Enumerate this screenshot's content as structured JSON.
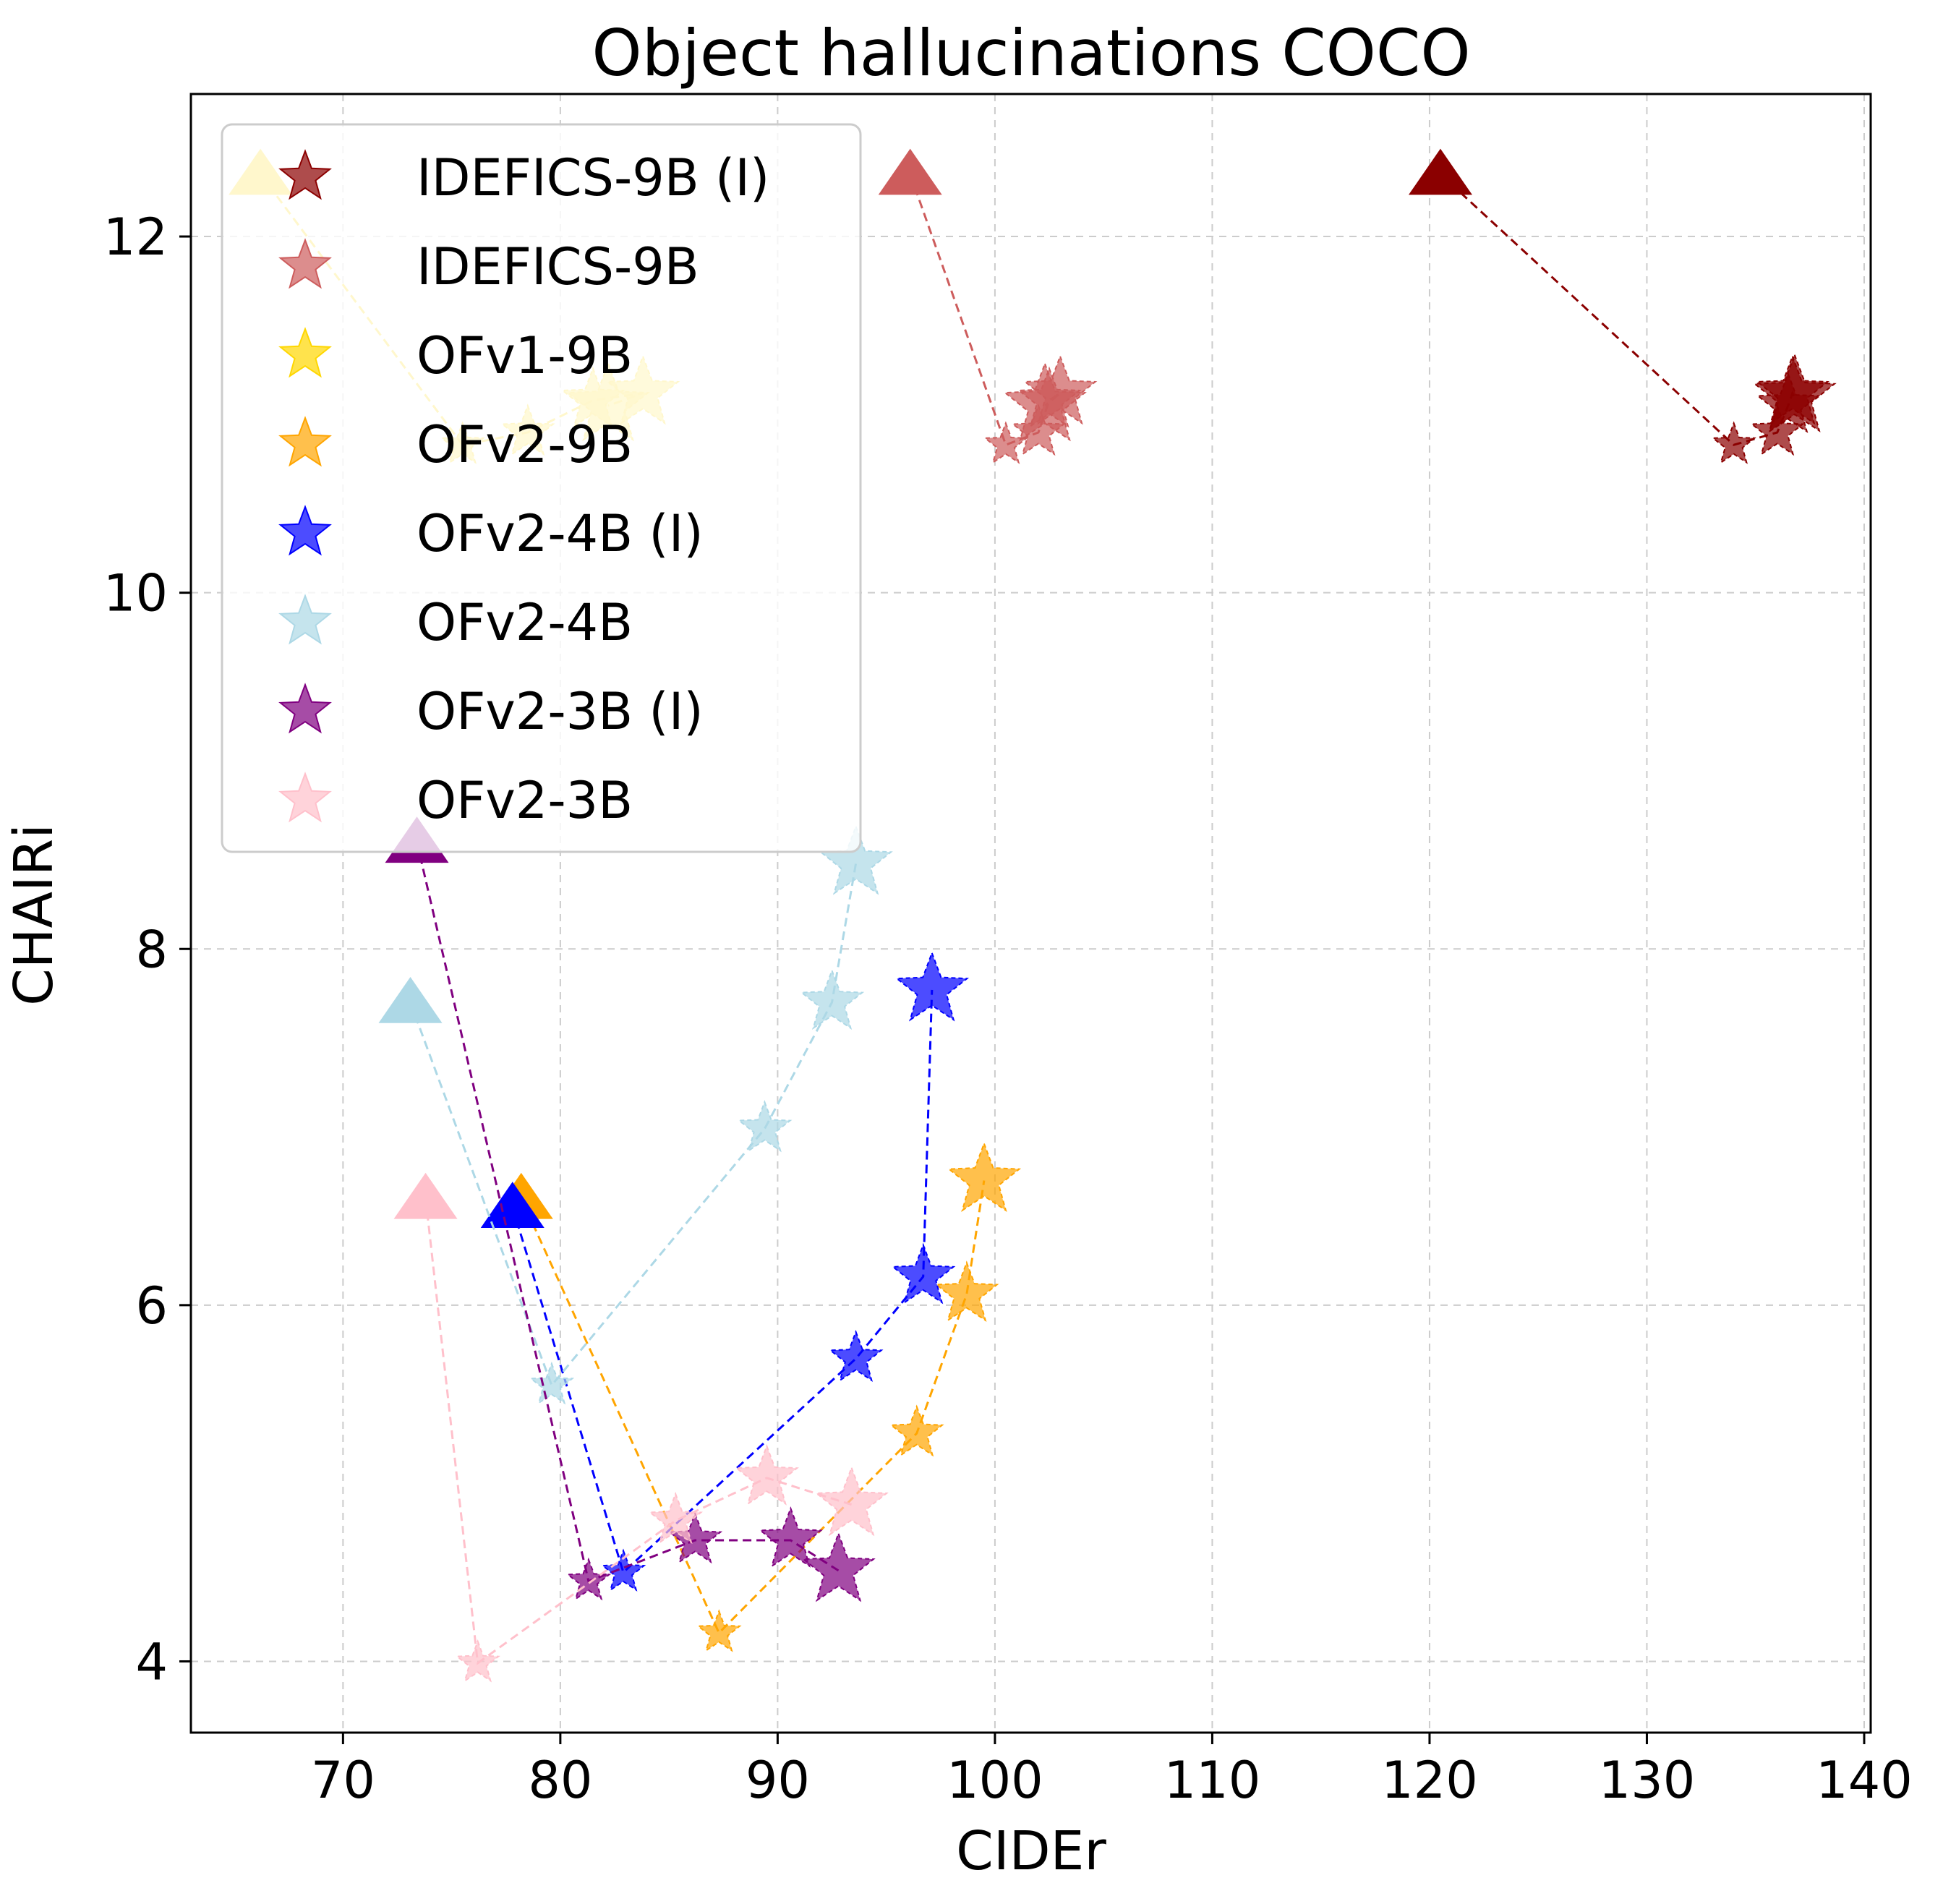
{
  "chart_data": {
    "type": "scatter",
    "title": "Object hallucinations COCO",
    "xlabel": "CIDEr",
    "ylabel": "CHAIRi",
    "xlim": [
      63,
      140.3
    ],
    "ylim": [
      3.6,
      12.8
    ],
    "xticks": [
      70,
      80,
      90,
      100,
      110,
      120,
      130,
      140
    ],
    "yticks": [
      4,
      6,
      8,
      10,
      12
    ],
    "grid": true,
    "legend_position": "top-left",
    "series": [
      {
        "name": "IDEFICS-9B (I)",
        "color": "#8b0000",
        "baseline": [
          120.5,
          12.35
        ],
        "points": [
          [
            134,
            10.83
          ],
          [
            136,
            10.9
          ],
          [
            136.5,
            11.05
          ],
          [
            136.7,
            11.12
          ],
          [
            136.8,
            11.1
          ]
        ]
      },
      {
        "name": "IDEFICS-9B",
        "color": "#cd5c5c",
        "baseline": [
          96.1,
          12.35
        ],
        "points": [
          [
            100.5,
            10.83
          ],
          [
            102,
            10.9
          ],
          [
            102.5,
            11.08
          ],
          [
            103,
            11.12
          ],
          [
            102.3,
            11.05
          ]
        ]
      },
      {
        "name": "OFv1-9B",
        "color": "#ffd700",
        "baseline": [
          66.2,
          12.35
        ],
        "points": [
          [
            75.5,
            10.83
          ],
          [
            78.5,
            10.9
          ],
          [
            81.5,
            11.08
          ],
          [
            83.8,
            11.12
          ],
          [
            82.2,
            11.05
          ]
        ]
      },
      {
        "name": "OFv2-9B",
        "color": "#ffa500",
        "baseline": [
          78.2,
          6.6
        ],
        "points": [
          [
            87.3,
            4.16
          ],
          [
            96.4,
            5.28
          ],
          [
            98.7,
            6.06
          ],
          [
            99.5,
            6.7
          ]
        ]
      },
      {
        "name": "OFv2-4B (I)",
        "color": "#0000ff",
        "baseline": [
          77.8,
          6.55
        ],
        "points": [
          [
            82.9,
            4.5
          ],
          [
            93.6,
            5.7
          ],
          [
            96.7,
            6.16
          ],
          [
            97.1,
            7.77
          ]
        ]
      },
      {
        "name": "OFv2-4B",
        "color": "#add8e6",
        "baseline": [
          73.1,
          7.7
        ],
        "points": [
          [
            79.6,
            5.55
          ],
          [
            89.4,
            6.99
          ],
          [
            92.5,
            7.7
          ],
          [
            93.6,
            8.48
          ]
        ]
      },
      {
        "name": "OFv2-3B (I)",
        "color": "#800080",
        "baseline": [
          73.4,
          8.6
        ],
        "points": [
          [
            81.3,
            4.45
          ],
          [
            86.2,
            4.68
          ],
          [
            90.6,
            4.68
          ],
          [
            92.8,
            4.51
          ]
        ]
      },
      {
        "name": "OFv2-3B",
        "color": "#ffc0cb",
        "baseline": [
          73.8,
          6.6
        ],
        "points": [
          [
            76.2,
            3.99
          ],
          [
            85.3,
            4.79
          ],
          [
            89.5,
            5.03
          ],
          [
            93.4,
            4.88
          ]
        ]
      }
    ]
  }
}
